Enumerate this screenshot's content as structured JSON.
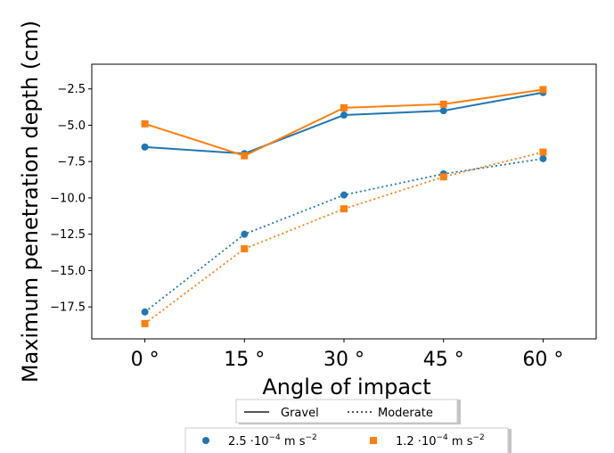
{
  "chart_data": {
    "type": "line",
    "xlabel": "Angle of impact",
    "ylabel": "Maximum penetration depth (cm)",
    "categories": [
      "0",
      "15",
      "30",
      "45",
      "60"
    ],
    "x_tick_labels": [
      "0 °",
      "15 °",
      "30 °",
      "45 °",
      "60 °"
    ],
    "xlim": [
      -8,
      68
    ],
    "ylim": [
      -19.7,
      -0.8
    ],
    "y_ticks": [
      -2.5,
      -5.0,
      -7.5,
      -10.0,
      -12.5,
      -15.0,
      -17.5
    ],
    "y_tick_labels": [
      "−2.5",
      "−5.0",
      "−7.5",
      "−10.0",
      "−12.5",
      "−15.0",
      "−17.5"
    ],
    "grid": false,
    "series": [
      {
        "soil": "Gravel",
        "acceleration": "2.5",
        "color": "#1f77b4",
        "linestyle": "solid",
        "marker": "circle",
        "values": [
          -6.5,
          -6.95,
          -4.3,
          -4.0,
          -2.75
        ]
      },
      {
        "soil": "Gravel",
        "acceleration": "1.2",
        "color": "#ff7f0e",
        "linestyle": "solid",
        "marker": "square",
        "values": [
          -4.9,
          -7.1,
          -3.8,
          -3.55,
          -2.55
        ]
      },
      {
        "soil": "Moderate",
        "acceleration": "2.5",
        "color": "#1f77b4",
        "linestyle": "dotted",
        "marker": "circle",
        "values": [
          -17.85,
          -12.5,
          -9.8,
          -8.35,
          -7.3
        ]
      },
      {
        "soil": "Moderate",
        "acceleration": "1.2",
        "color": "#ff7f0e",
        "linestyle": "dotted",
        "marker": "square",
        "values": [
          -18.65,
          -13.5,
          -10.75,
          -8.55,
          -6.85
        ]
      }
    ],
    "legends": [
      {
        "placement": "bottom-center",
        "entries": [
          {
            "label": "Gravel",
            "linestyle": "solid",
            "color": "#555555"
          },
          {
            "label": "Moderate",
            "linestyle": "dotted",
            "color": "#555555"
          }
        ]
      },
      {
        "placement": "bottom",
        "entries": [
          {
            "prefix": "2.5 ·10",
            "exponent": "−4",
            "unit": " m s",
            "unit_exponent": "−2",
            "marker": "circle",
            "color": "#1f77b4"
          },
          {
            "prefix": "1.2 ·10",
            "exponent": "−4",
            "unit": " m s",
            "unit_exponent": "−2",
            "marker": "square",
            "color": "#ff7f0e"
          }
        ]
      }
    ]
  }
}
